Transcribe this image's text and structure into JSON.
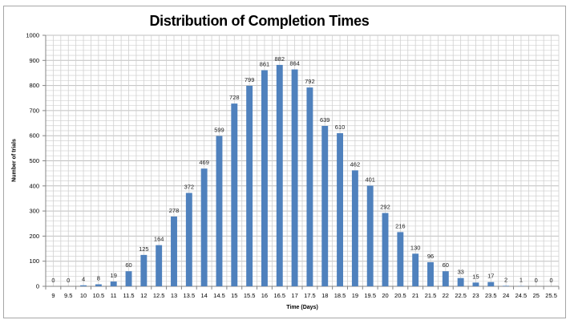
{
  "chart_data": {
    "type": "bar",
    "title": "Distribution of Completion Times",
    "xlabel": "Time (Days)",
    "ylabel": "Number of trials",
    "ylim": [
      0,
      1000
    ],
    "yticks": [
      0,
      100,
      200,
      300,
      400,
      500,
      600,
      700,
      800,
      900,
      1000
    ],
    "grid": true,
    "legend": null,
    "bar_color": "#4f81bd",
    "categories": [
      "9",
      "9.5",
      "10",
      "10.5",
      "11",
      "11.5",
      "12",
      "12.5",
      "13",
      "13.5",
      "14",
      "14.5",
      "15",
      "15.5",
      "16",
      "16.5",
      "17",
      "17.5",
      "18",
      "18.5",
      "19",
      "19.5",
      "20",
      "20.5",
      "21",
      "21.5",
      "22",
      "22.5",
      "23",
      "23.5",
      "24",
      "24.5",
      "25",
      "25.5"
    ],
    "values": [
      0,
      0,
      4,
      8,
      19,
      60,
      125,
      164,
      278,
      372,
      469,
      599,
      728,
      799,
      861,
      882,
      864,
      792,
      639,
      610,
      462,
      401,
      292,
      216,
      130,
      96,
      60,
      33,
      15,
      17,
      2,
      1,
      0,
      0
    ]
  }
}
